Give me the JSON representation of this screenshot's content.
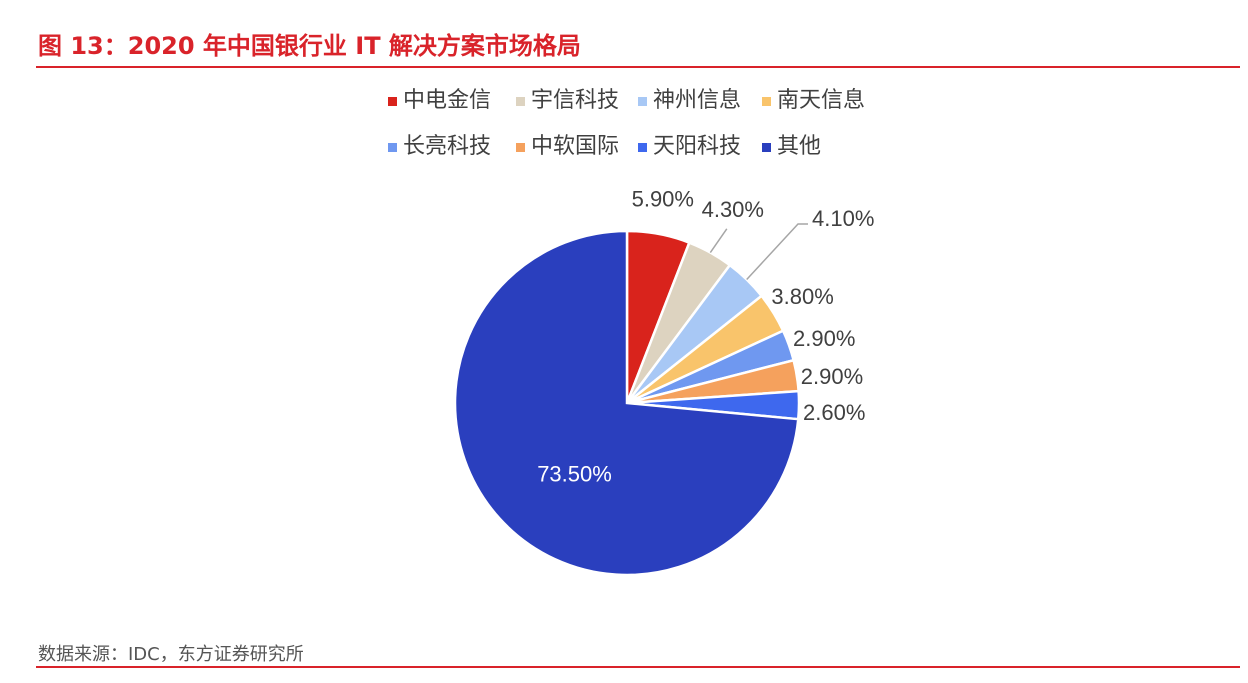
{
  "title": "图 13：2020 年中国银行业 IT 解决方案市场格局",
  "source": "数据来源：IDC，东方证券研究所",
  "chart_data": {
    "type": "pie",
    "labels": [
      "中电金信",
      "宇信科技",
      "神州信息",
      "南天信息",
      "长亮科技",
      "中软国际",
      "天阳科技",
      "其他"
    ],
    "values": [
      5.9,
      4.3,
      4.1,
      3.8,
      2.9,
      2.9,
      2.6,
      73.5
    ],
    "value_labels": [
      "5.90%",
      "4.30%",
      "4.10%",
      "3.80%",
      "2.90%",
      "2.90%",
      "2.60%",
      "73.50%"
    ],
    "colors": [
      "#d9231c",
      "#ddd3c0",
      "#a8c8f5",
      "#f9c46b",
      "#6f98f0",
      "#f5a15d",
      "#3e68ee",
      "#2a3fbe"
    ],
    "legend_position": "top",
    "legend_columns": 4
  }
}
